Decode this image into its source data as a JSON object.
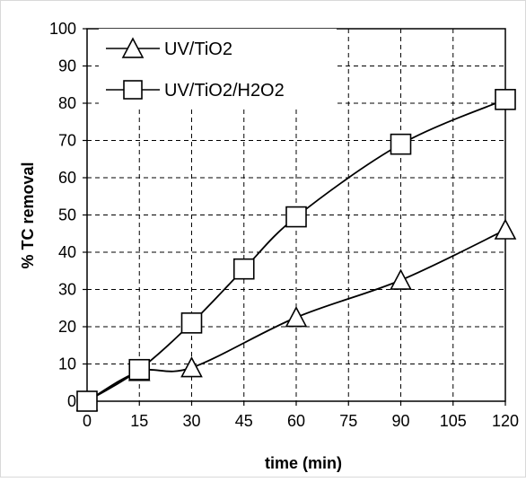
{
  "chart_data": {
    "type": "line",
    "xlabel": "time (min)",
    "ylabel": "% TC removal",
    "x_ticks": [
      0,
      15,
      30,
      45,
      60,
      75,
      90,
      105,
      120
    ],
    "y_ticks": [
      0,
      10,
      20,
      30,
      40,
      50,
      60,
      70,
      80,
      90,
      100
    ],
    "xlim": [
      0,
      120
    ],
    "ylim": [
      0,
      100
    ],
    "grid": "dashed",
    "legend_position": "top-left",
    "series": [
      {
        "name": "UV/TiO2",
        "marker": "triangle",
        "color": "#000000",
        "x": [
          0,
          15,
          30,
          60,
          90,
          120
        ],
        "y": [
          0,
          8,
          9,
          22.5,
          32.5,
          46
        ]
      },
      {
        "name": "UV/TiO2/H2O2",
        "marker": "square",
        "color": "#000000",
        "x": [
          0,
          15,
          30,
          45,
          60,
          90,
          120
        ],
        "y": [
          0,
          8.5,
          21,
          35.5,
          49.5,
          69,
          81
        ]
      }
    ]
  }
}
